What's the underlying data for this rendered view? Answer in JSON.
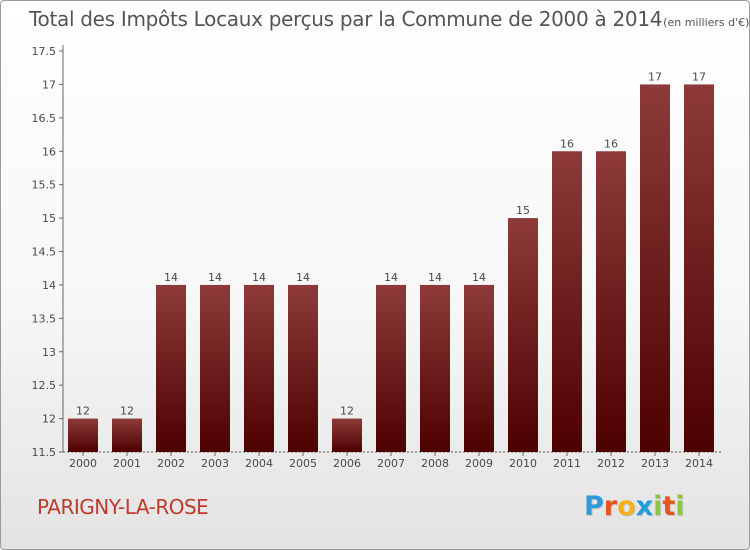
{
  "title": "Total des Impôts Locaux perçus par la Commune de 2000 à 2014",
  "unit": "(en milliers d'€)",
  "commune": "PARIGNY-LA-ROSE",
  "logo": {
    "letters": [
      "P",
      "r",
      "o",
      "x",
      "i",
      "t",
      "i"
    ],
    "colors": [
      "#2e9ad6",
      "#e9541b",
      "#f2b21b",
      "#1f9edb",
      "#8cc63f",
      "#e9541b",
      "#8cc63f"
    ]
  },
  "colors": {
    "bar": "#7a1e1e",
    "bar_light": "#8e3a3a",
    "bar_dark": "#4d0000",
    "axis_text": "#4a4a4a",
    "commune": "#c0392b"
  },
  "chart_data": {
    "type": "bar",
    "categories": [
      "2000",
      "2001",
      "2002",
      "2003",
      "2004",
      "2005",
      "2006",
      "2007",
      "2008",
      "2009",
      "2010",
      "2011",
      "2012",
      "2013",
      "2014"
    ],
    "values": [
      12,
      12,
      14,
      14,
      14,
      14,
      12,
      14,
      14,
      14,
      15,
      16,
      16,
      17,
      17
    ],
    "data_labels": [
      "12",
      "12",
      "14",
      "14",
      "14",
      "14",
      "12",
      "14",
      "14",
      "14",
      "15",
      "16",
      "16",
      "17",
      "17"
    ],
    "ylim": [
      11.5,
      17.5
    ],
    "yticks": [
      11.5,
      12,
      12.5,
      13,
      13.5,
      14,
      14.5,
      15,
      15.5,
      16,
      16.5,
      17,
      17.5
    ],
    "ytick_labels": [
      "11.5",
      "12",
      "12.5",
      "13",
      "13.5",
      "14",
      "14.5",
      "15",
      "15.5",
      "16",
      "16.5",
      "17",
      "17.5"
    ],
    "grid": false,
    "legend": "none"
  }
}
